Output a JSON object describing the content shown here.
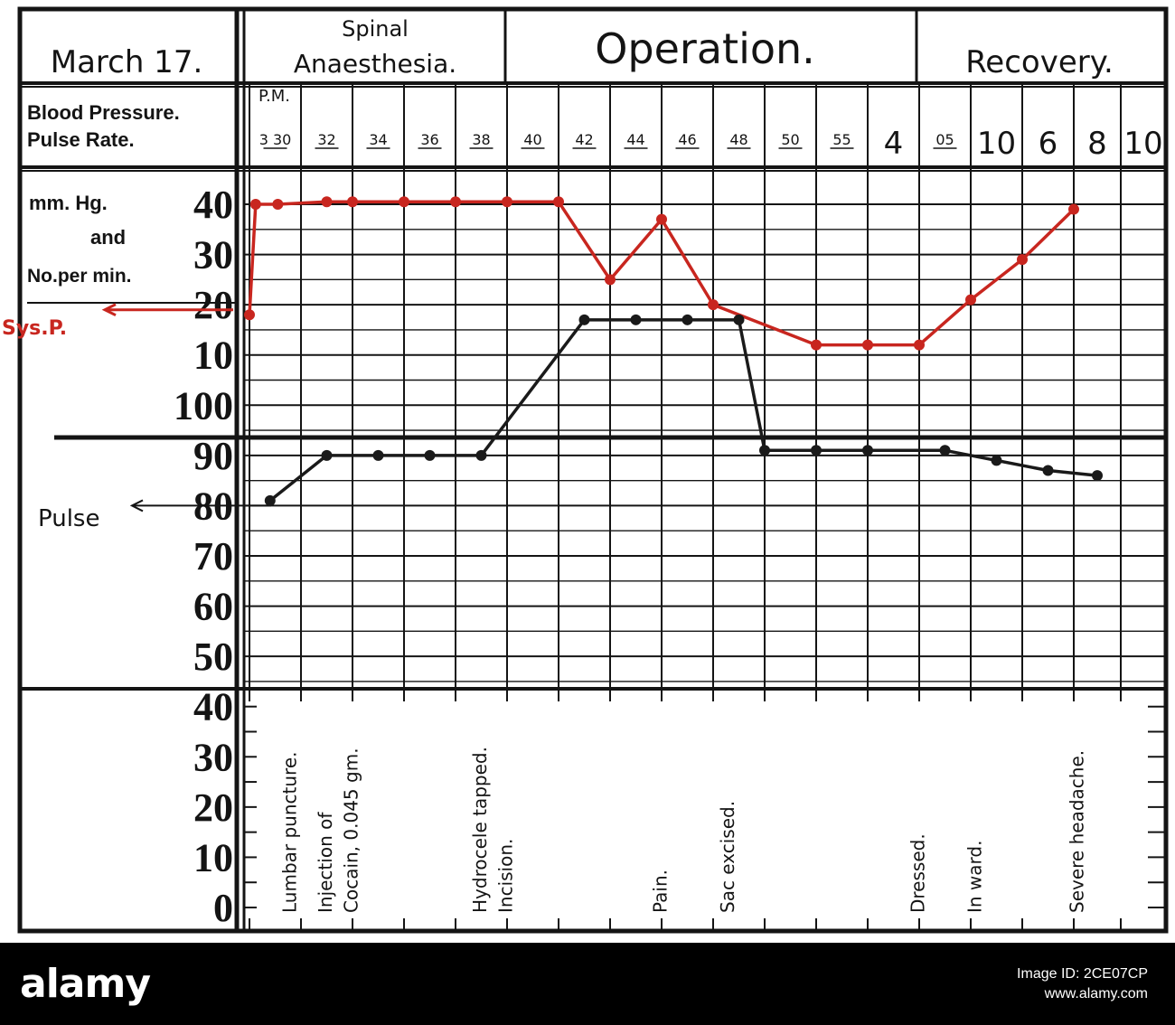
{
  "header": {
    "date": "March 17.",
    "row_label_line1": "Blood Pressure.",
    "row_label_line2": "Pulse Rate.",
    "phases": [
      "Spinal Anaesthesia.",
      "Operation.",
      "Recovery."
    ],
    "pm_label": "P.M."
  },
  "axis": {
    "unit_line1": "mm. Hg.",
    "unit_line2": "and",
    "unit_line3": "No.per min.",
    "sys_marker": "Sys.P.",
    "pulse_marker": "Pulse",
    "tick_labels": [
      "40",
      "30",
      "20",
      "10",
      "100",
      "90",
      "80",
      "70",
      "60",
      "50",
      "40",
      "30",
      "20",
      "10",
      "0"
    ]
  },
  "chart_data": {
    "type": "line",
    "categories": [
      "3 30",
      "32",
      "34",
      "36",
      "38",
      "40",
      "42",
      "44",
      "46",
      "48",
      "50",
      "55",
      "4",
      "05",
      "10",
      "6",
      "8",
      "10"
    ],
    "y_scale": {
      "top": 140,
      "bottom": 0,
      "printed_ticks": [
        140,
        130,
        120,
        110,
        100,
        90,
        80,
        70,
        60,
        50,
        40,
        30,
        20,
        10,
        0
      ],
      "note_printed_as": "tick 140 printed 40, 130 as 30, 120 as 20, 110 as 10"
    },
    "grid": true,
    "series": [
      {
        "name": "Sys.P.",
        "color": "#c8261f",
        "points": [
          {
            "t": 0.0,
            "y": 118
          },
          {
            "t": 0.12,
            "y": 140
          },
          {
            "t": 0.55,
            "y": 140
          },
          {
            "t": 1.5,
            "y": 140.5
          },
          {
            "t": 2.0,
            "y": 140.5
          },
          {
            "t": 3.0,
            "y": 140.5
          },
          {
            "t": 4.0,
            "y": 140.5
          },
          {
            "t": 5.0,
            "y": 140.5
          },
          {
            "t": 6.0,
            "y": 140.5
          },
          {
            "t": 7.0,
            "y": 125
          },
          {
            "t": 8.0,
            "y": 137
          },
          {
            "t": 9.0,
            "y": 120
          },
          {
            "t": 11.0,
            "y": 112
          },
          {
            "t": 12.0,
            "y": 112
          },
          {
            "t": 13.0,
            "y": 112
          },
          {
            "t": 14.0,
            "y": 121
          },
          {
            "t": 15.0,
            "y": 129
          },
          {
            "t": 16.0,
            "y": 139
          }
        ]
      },
      {
        "name": "Pulse",
        "color": "#1a1a1a",
        "points": [
          {
            "t": 0.4,
            "y": 81
          },
          {
            "t": 1.5,
            "y": 90
          },
          {
            "t": 2.5,
            "y": 90
          },
          {
            "t": 3.5,
            "y": 90
          },
          {
            "t": 4.5,
            "y": 90
          },
          {
            "t": 6.5,
            "y": 117
          },
          {
            "t": 7.5,
            "y": 117
          },
          {
            "t": 8.5,
            "y": 117
          },
          {
            "t": 9.5,
            "y": 117
          },
          {
            "t": 10.0,
            "y": 91
          },
          {
            "t": 11.0,
            "y": 91
          },
          {
            "t": 12.0,
            "y": 91
          },
          {
            "t": 13.5,
            "y": 91
          },
          {
            "t": 14.5,
            "y": 89
          },
          {
            "t": 15.5,
            "y": 87
          },
          {
            "t": 16.5,
            "y": 86
          }
        ]
      }
    ]
  },
  "annotations": [
    {
      "text": "Lumbar puncture.",
      "t": 0.9
    },
    {
      "text": "Injection of",
      "t": 1.6
    },
    {
      "text": "Cocain, 0.045 gm.",
      "t": 2.1
    },
    {
      "text": "Hydrocele tapped.",
      "t": 4.6
    },
    {
      "text": "Incision.",
      "t": 5.1
    },
    {
      "text": "Pain.",
      "t": 8.1
    },
    {
      "text": "Sac excised.",
      "t": 9.4
    },
    {
      "text": "Dressed.",
      "t": 13.1
    },
    {
      "text": "In ward.",
      "t": 14.2
    },
    {
      "text": "Severe headache.",
      "t": 16.2
    }
  ],
  "footer": {
    "brand": "alamy",
    "image_id": "Image ID: 2CE07CP",
    "site": "www.alamy.com"
  },
  "colors": {
    "ink": "#141414",
    "red": "#c8261f",
    "paper": "#ffffff"
  }
}
